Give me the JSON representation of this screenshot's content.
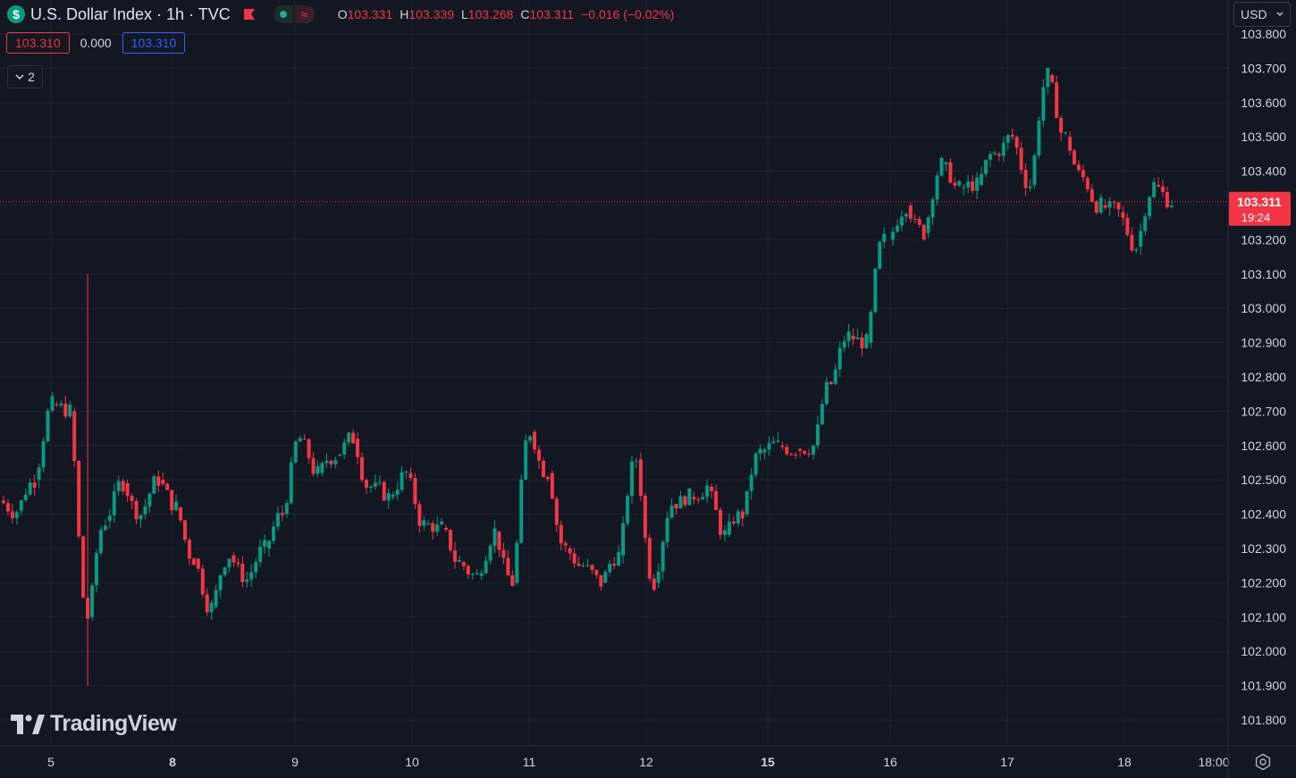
{
  "header": {
    "symbol_icon": "dollar-sign-icon",
    "title": "U.S. Dollar Index · 1h · TVC",
    "ohlc": {
      "o_label": "O",
      "o": "103.331",
      "h_label": "H",
      "h": "103.339",
      "l_label": "L",
      "l": "103.268",
      "c_label": "C",
      "c": "103.311",
      "change": "−0.016 (−0.02%)"
    },
    "sell_price": "103.310",
    "spread": "0.000",
    "buy_price": "103.310",
    "indicators_count": "2",
    "currency": "USD"
  },
  "brand": "TradingView",
  "colors": {
    "background": "#131722",
    "up": "#089981",
    "down": "#f23645",
    "grid": "#1e222d",
    "text": "#d1d4dc"
  },
  "chart_data": {
    "type": "candlestick",
    "title": "U.S. Dollar Index · 1h · TVC",
    "ylim": [
      101.74,
      103.84
    ],
    "y_ticks": [
      "103.800",
      "103.700",
      "103.600",
      "103.500",
      "103.400",
      "103.300",
      "103.200",
      "103.100",
      "103.000",
      "102.900",
      "102.800",
      "102.700",
      "102.600",
      "102.500",
      "102.400",
      "102.300",
      "102.200",
      "102.100",
      "102.000",
      "101.900",
      "101.800"
    ],
    "x_ticks": [
      {
        "label": "5",
        "bold": false
      },
      {
        "label": "8",
        "bold": true
      },
      {
        "label": "9",
        "bold": false
      },
      {
        "label": "10",
        "bold": false
      },
      {
        "label": "11",
        "bold": false
      },
      {
        "label": "12",
        "bold": false
      },
      {
        "label": "15",
        "bold": true
      },
      {
        "label": "16",
        "bold": false
      },
      {
        "label": "17",
        "bold": false
      },
      {
        "label": "18",
        "bold": false
      },
      {
        "label": "18:00",
        "bold": false
      }
    ],
    "last_price": "103.311",
    "countdown": "19:24",
    "anchors": [
      {
        "tick": "5",
        "close": 102.41
      },
      {
        "tick": "5",
        "close": 102.5
      },
      {
        "tick": "5",
        "close": 102.72
      },
      {
        "tick": "5",
        "close": 102.7
      },
      {
        "tick": "5",
        "close": 102.1,
        "high": 103.1,
        "low": 101.9
      },
      {
        "tick": "8",
        "close": 102.38
      },
      {
        "tick": "8",
        "close": 102.49
      },
      {
        "tick": "8",
        "close": 102.4
      },
      {
        "tick": "8",
        "close": 102.5
      },
      {
        "tick": "8",
        "close": 102.42
      },
      {
        "tick": "8",
        "close": 102.27
      },
      {
        "tick": "8",
        "close": 102.13
      },
      {
        "tick": "9",
        "close": 102.28
      },
      {
        "tick": "9",
        "close": 102.21
      },
      {
        "tick": "9",
        "close": 102.3
      },
      {
        "tick": "9",
        "close": 102.4
      },
      {
        "tick": "9",
        "close": 102.62
      },
      {
        "tick": "10",
        "close": 102.52
      },
      {
        "tick": "10",
        "close": 102.57
      },
      {
        "tick": "10",
        "close": 102.62
      },
      {
        "tick": "10",
        "close": 102.48
      },
      {
        "tick": "10",
        "close": 102.45
      },
      {
        "tick": "10",
        "close": 102.52
      },
      {
        "tick": "10",
        "close": 102.37
      },
      {
        "tick": "11",
        "close": 102.36
      },
      {
        "tick": "11",
        "close": 102.26
      },
      {
        "tick": "11",
        "close": 102.22
      },
      {
        "tick": "11",
        "close": 102.35
      },
      {
        "tick": "11",
        "close": 102.2
      },
      {
        "tick": "11",
        "close": 102.64
      },
      {
        "tick": "12",
        "close": 102.52
      },
      {
        "tick": "12",
        "close": 102.3
      },
      {
        "tick": "12",
        "close": 102.25
      },
      {
        "tick": "12",
        "close": 102.2
      },
      {
        "tick": "12",
        "close": 102.28
      },
      {
        "tick": "12",
        "close": 102.56
      },
      {
        "tick": "12",
        "close": 102.2
      },
      {
        "tick": "12",
        "close": 102.43
      },
      {
        "tick": "12",
        "close": 102.45
      },
      {
        "tick": "15",
        "close": 102.48
      },
      {
        "tick": "15",
        "close": 102.34
      },
      {
        "tick": "15",
        "close": 102.4
      },
      {
        "tick": "15",
        "close": 102.58
      },
      {
        "tick": "15",
        "close": 102.6
      },
      {
        "tick": "15",
        "close": 102.59
      },
      {
        "tick": "15",
        "close": 102.6
      },
      {
        "tick": "16",
        "close": 102.78
      },
      {
        "tick": "16",
        "close": 102.92
      },
      {
        "tick": "16",
        "close": 102.9
      },
      {
        "tick": "16",
        "close": 103.2
      },
      {
        "tick": "16",
        "close": 103.3
      },
      {
        "tick": "16",
        "close": 103.22
      },
      {
        "tick": "16",
        "close": 103.42
      },
      {
        "tick": "17",
        "close": 103.35
      },
      {
        "tick": "17",
        "close": 103.36
      },
      {
        "tick": "17",
        "close": 103.45
      },
      {
        "tick": "17",
        "close": 103.5
      },
      {
        "tick": "17",
        "close": 103.36
      },
      {
        "tick": "17",
        "close": 103.68
      },
      {
        "tick": "17",
        "close": 103.5
      },
      {
        "tick": "17",
        "close": 103.38
      },
      {
        "tick": "18",
        "close": 103.3
      },
      {
        "tick": "18",
        "close": 103.28
      },
      {
        "tick": "18",
        "close": 103.18
      },
      {
        "tick": "18",
        "close": 103.36
      },
      {
        "tick": "18",
        "close": 103.311
      }
    ],
    "gaps": [
      "15 → 16"
    ]
  }
}
